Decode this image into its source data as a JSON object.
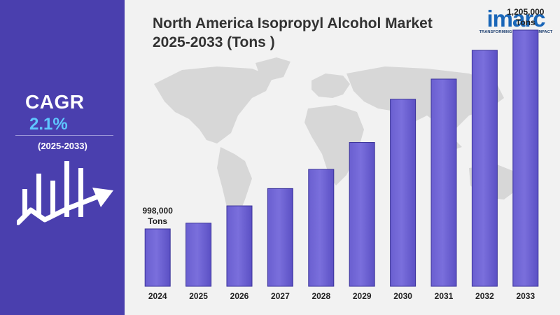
{
  "sidebar": {
    "cagr_label": "CAGR",
    "cagr_value": "2.1%",
    "cagr_period": "(2025-2033)",
    "accent_color": "#5fc7ff",
    "background_color": "#4a3fae",
    "icon": "growth-chart-arrow-icon"
  },
  "header": {
    "title_line1": "North America Isopropyl Alcohol Market",
    "title_line2": "2025-2033 (Tons )"
  },
  "logo": {
    "wordmark": "imarc",
    "tagline": "TRANSFORMING IDEAS INTO IMPACT",
    "color": "#1a66b8"
  },
  "chart_data": {
    "type": "bar",
    "title": "North America Isopropyl Alcohol Market 2025-2033 (Tons )",
    "categories": [
      "2024",
      "2025",
      "2026",
      "2027",
      "2028",
      "2029",
      "2030",
      "2031",
      "2032",
      "2033"
    ],
    "values": [
      998000,
      1004000,
      1022000,
      1040000,
      1060000,
      1088000,
      1133000,
      1154000,
      1184000,
      1205000
    ],
    "bar_color": "#7a6fdc",
    "annotations": [
      {
        "index": 0,
        "value_text": "998,000",
        "unit_text": "Tons"
      },
      {
        "index": 9,
        "value_text": "1,205,000",
        "unit_text": "Tons"
      }
    ],
    "grid": false,
    "background": "world-map"
  }
}
